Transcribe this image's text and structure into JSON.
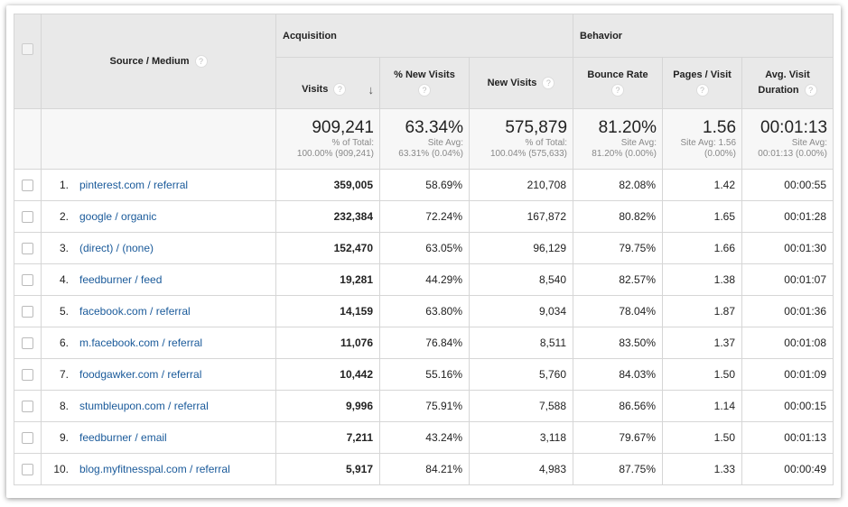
{
  "header": {
    "source_medium": "Source / Medium",
    "groups": [
      "Acquisition",
      "Behavior"
    ],
    "columns": [
      {
        "label": "Visits",
        "line2": ""
      },
      {
        "label": "% New Visits",
        "line2": ""
      },
      {
        "label": "New Visits",
        "line2": ""
      },
      {
        "label": "Bounce Rate",
        "line2": ""
      },
      {
        "label": "Pages / Visit",
        "line2": ""
      },
      {
        "label": "Avg. Visit",
        "line2": "Duration"
      }
    ],
    "help_glyph": "?",
    "sort_glyph": "↓"
  },
  "totals": [
    {
      "value": "909,241",
      "l1": "% of Total:",
      "l2": "100.00% (909,241)"
    },
    {
      "value": "63.34%",
      "l1": "Site Avg:",
      "l2": "63.31% (0.04%)"
    },
    {
      "value": "575,879",
      "l1": "% of Total:",
      "l2": "100.04% (575,633)"
    },
    {
      "value": "81.20%",
      "l1": "Site Avg:",
      "l2": "81.20% (0.00%)"
    },
    {
      "value": "1.56",
      "l1": "Site Avg: 1.56",
      "l2": "(0.00%)"
    },
    {
      "value": "00:01:13",
      "l1": "Site Avg:",
      "l2": "00:01:13 (0.00%)"
    }
  ],
  "rows": [
    {
      "n": "1.",
      "src": "pinterest.com / referral",
      "v": [
        "359,005",
        "58.69%",
        "210,708",
        "82.08%",
        "1.42",
        "00:00:55"
      ]
    },
    {
      "n": "2.",
      "src": "google / organic",
      "v": [
        "232,384",
        "72.24%",
        "167,872",
        "80.82%",
        "1.65",
        "00:01:28"
      ]
    },
    {
      "n": "3.",
      "src": "(direct) / (none)",
      "v": [
        "152,470",
        "63.05%",
        "96,129",
        "79.75%",
        "1.66",
        "00:01:30"
      ]
    },
    {
      "n": "4.",
      "src": "feedburner / feed",
      "v": [
        "19,281",
        "44.29%",
        "8,540",
        "82.57%",
        "1.38",
        "00:01:07"
      ]
    },
    {
      "n": "5.",
      "src": "facebook.com / referral",
      "v": [
        "14,159",
        "63.80%",
        "9,034",
        "78.04%",
        "1.87",
        "00:01:36"
      ]
    },
    {
      "n": "6.",
      "src": "m.facebook.com / referral",
      "v": [
        "11,076",
        "76.84%",
        "8,511",
        "83.50%",
        "1.37",
        "00:01:08"
      ]
    },
    {
      "n": "7.",
      "src": "foodgawker.com / referral",
      "v": [
        "10,442",
        "55.16%",
        "5,760",
        "84.03%",
        "1.50",
        "00:01:09"
      ]
    },
    {
      "n": "8.",
      "src": "stumbleupon.com / referral",
      "v": [
        "9,996",
        "75.91%",
        "7,588",
        "86.56%",
        "1.14",
        "00:00:15"
      ]
    },
    {
      "n": "9.",
      "src": "feedburner / email",
      "v": [
        "7,211",
        "43.24%",
        "3,118",
        "79.67%",
        "1.50",
        "00:01:13"
      ]
    },
    {
      "n": "10.",
      "src": "blog.myfitnesspal.com / referral",
      "v": [
        "5,917",
        "84.21%",
        "4,983",
        "87.75%",
        "1.33",
        "00:00:49"
      ]
    }
  ]
}
